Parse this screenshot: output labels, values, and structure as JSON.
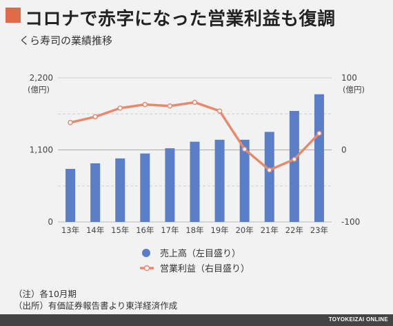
{
  "title": "コロナで赤字になった営業利益も復調",
  "subtitle": "くら寿司の業績推移",
  "chart_data": {
    "type": "bar",
    "title": "コロナで赤字になった営業利益も復調",
    "subtitle": "くら寿司の業績推移",
    "categories": [
      "13年",
      "14年",
      "15年",
      "16年",
      "17年",
      "18年",
      "19年",
      "20年",
      "21年",
      "22年",
      "23年"
    ],
    "series": [
      {
        "name": "売上高（左目盛り）",
        "type": "bar",
        "axis": "left",
        "color": "#5b7ec9",
        "values": [
          810,
          895,
          970,
          1045,
          1125,
          1225,
          1255,
          1255,
          1375,
          1695,
          1950
        ]
      },
      {
        "name": "営業利益（右目盛り）",
        "type": "line",
        "axis": "right",
        "color": "#e8896b",
        "values": [
          38,
          46,
          58,
          63,
          61,
          66,
          54,
          1,
          -28,
          -13,
          23
        ]
      }
    ],
    "left_axis": {
      "unit": "(億円)",
      "ylim": [
        0,
        2200
      ],
      "ticks": [
        0,
        1100,
        2200
      ],
      "tick_labels": [
        "0",
        "1,100",
        "2,200"
      ]
    },
    "right_axis": {
      "unit": "(億円)",
      "ylim": [
        -100,
        100
      ],
      "ticks": [
        -100,
        0,
        100
      ],
      "tick_labels": [
        "-100",
        "0",
        "100"
      ]
    },
    "grid": true,
    "legend_position": "bottom"
  },
  "notes": [
    "（注）各10月期",
    "（出所）有価証券報告書より東洋経済作成"
  ],
  "footer": "TOYOKEIZAI ONLINE"
}
